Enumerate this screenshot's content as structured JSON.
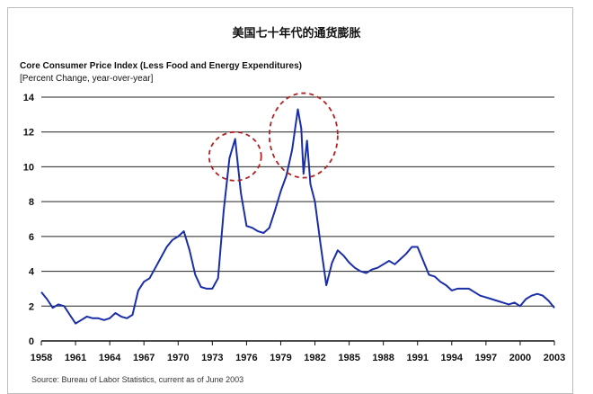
{
  "chart_data": {
    "type": "line",
    "title": "美国七十年代的通货膨胀",
    "subtitle": "Core Consumer Price Index (Less Food and Energy Expenditures)",
    "ylabel": "[Percent Change, year-over-year]",
    "source": "Source: Bureau of Labor Statistics, current as of June 2003",
    "ylim": [
      0,
      14
    ],
    "yticks": [
      "0",
      "2",
      "4",
      "6",
      "8",
      "10",
      "12",
      "14"
    ],
    "xlim": [
      1958,
      2003
    ],
    "xticks": [
      "1958",
      "1961",
      "1964",
      "1967",
      "1970",
      "1973",
      "1976",
      "1979",
      "1982",
      "1985",
      "1988",
      "1991",
      "1994",
      "1997",
      "2000",
      "2003"
    ],
    "grid": "horizontal",
    "line_color": "#1a2ea8",
    "highlight_color": "#b22222",
    "series": [
      {
        "x": [
          1958,
          1958.5,
          1959,
          1959.5,
          1960,
          1960.5,
          1961,
          1961.5,
          1962,
          1962.5,
          1963,
          1963.5,
          1964,
          1964.5,
          1965,
          1965.5,
          1966,
          1966.5,
          1967,
          1967.5,
          1968,
          1968.5,
          1969,
          1969.5,
          1970,
          1970.5,
          1971,
          1971.5,
          1972,
          1972.5,
          1973,
          1973.5,
          1974,
          1974.5,
          1975,
          1975.5,
          1976,
          1976.5,
          1977,
          1977.5,
          1978,
          1978.5,
          1979,
          1979.5,
          1980,
          1980.5,
          1980.8,
          1981,
          1981.3,
          1981.6,
          1982,
          1982.5,
          1983,
          1983.5,
          1984,
          1984.5,
          1985,
          1985.5,
          1986,
          1986.5,
          1987,
          1987.5,
          1988,
          1988.5,
          1989,
          1989.5,
          1990,
          1990.5,
          1991,
          1991.5,
          1992,
          1992.5,
          1993,
          1993.5,
          1994,
          1994.5,
          1995,
          1995.5,
          1996,
          1996.5,
          1997,
          1997.5,
          1998,
          1998.5,
          1999,
          1999.5,
          2000,
          2000.5,
          2001,
          2001.5,
          2002,
          2002.5,
          2003
        ],
        "values": [
          2.8,
          2.4,
          1.9,
          2.1,
          2.0,
          1.5,
          1.0,
          1.2,
          1.4,
          1.3,
          1.3,
          1.2,
          1.3,
          1.6,
          1.4,
          1.3,
          1.5,
          2.9,
          3.4,
          3.6,
          4.2,
          4.8,
          5.4,
          5.8,
          6.0,
          6.3,
          5.2,
          3.8,
          3.1,
          3.0,
          3.0,
          3.6,
          7.5,
          10.5,
          11.6,
          8.5,
          6.6,
          6.5,
          6.3,
          6.2,
          6.5,
          7.5,
          8.6,
          9.5,
          11.0,
          13.3,
          12.2,
          9.6,
          11.5,
          9.0,
          8.0,
          5.5,
          3.2,
          4.5,
          5.2,
          4.9,
          4.5,
          4.2,
          4.0,
          3.9,
          4.1,
          4.2,
          4.4,
          4.6,
          4.4,
          4.7,
          5.0,
          5.4,
          5.4,
          4.6,
          3.8,
          3.7,
          3.4,
          3.2,
          2.9,
          3.0,
          3.0,
          3.0,
          2.8,
          2.6,
          2.5,
          2.4,
          2.3,
          2.2,
          2.1,
          2.2,
          2.0,
          2.4,
          2.6,
          2.7,
          2.6,
          2.3,
          1.9
        ]
      }
    ]
  }
}
